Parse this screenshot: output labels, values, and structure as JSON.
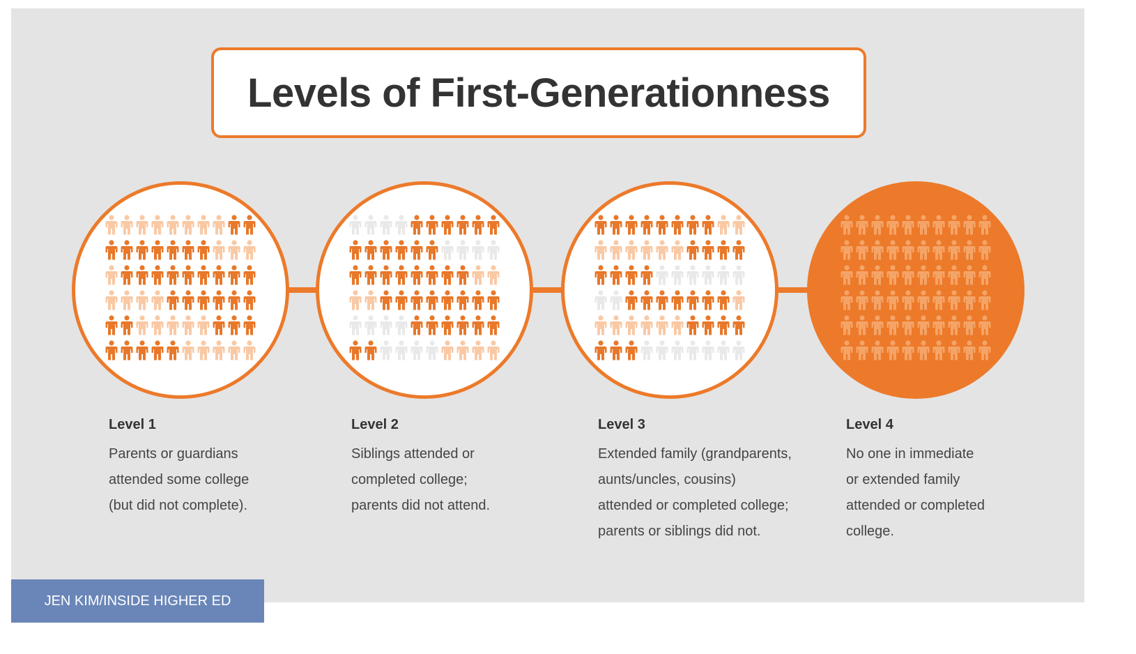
{
  "title": "Levels of First-Generationness",
  "credit": "JEN KIM/INSIDE HIGHER ED",
  "colors": {
    "accent": "#ec7a2a",
    "dark": "#e8782a",
    "light": "#f9c9a5",
    "grey": "#e9e9e9",
    "faded": "#f5a467",
    "background": "#e4e4e4"
  },
  "levels": [
    {
      "label": "Level 1",
      "description": "Parents or guardians attended some college (but did not complete).",
      "grid": [
        "LLLLLLLLDD",
        "DDDDDDDLLL",
        "LDDDDDDDDD",
        "LLLLDDDDDD",
        "DDLLLLLDDD",
        "DDDDDLLLLL"
      ]
    },
    {
      "label": "Level 2",
      "description": "Siblings attended or completed college; parents did not attend.",
      "grid": [
        "GGGGDDDDDD",
        "DDDDDDGGGG",
        "DDDDDDDDLL",
        "LLDDDDDDDD",
        "GGGGDDDDDD",
        "DDGGGGLLLL"
      ]
    },
    {
      "label": "Level 3",
      "description": "Extended family (grandparents, aunts/uncles, cousins) attended or completed college; parents or siblings did not.",
      "grid": [
        "DDDDDDDDLL",
        "LLLLLLDDDD",
        "DDDDGGGGGG",
        "GGDDDDDDDL",
        "LLLLLLDDDD",
        "DDDGGGGGGG"
      ]
    },
    {
      "label": "Level 4",
      "description": "No one in immediate or extended family attended or completed college.",
      "grid": [
        "FFFFFFFFFF",
        "FFFFFFFFFF",
        "FFFFFFFFFF",
        "FFFFFFFFFF",
        "FFFFFFFFFF",
        "FFFFFFFFFF"
      ]
    }
  ]
}
